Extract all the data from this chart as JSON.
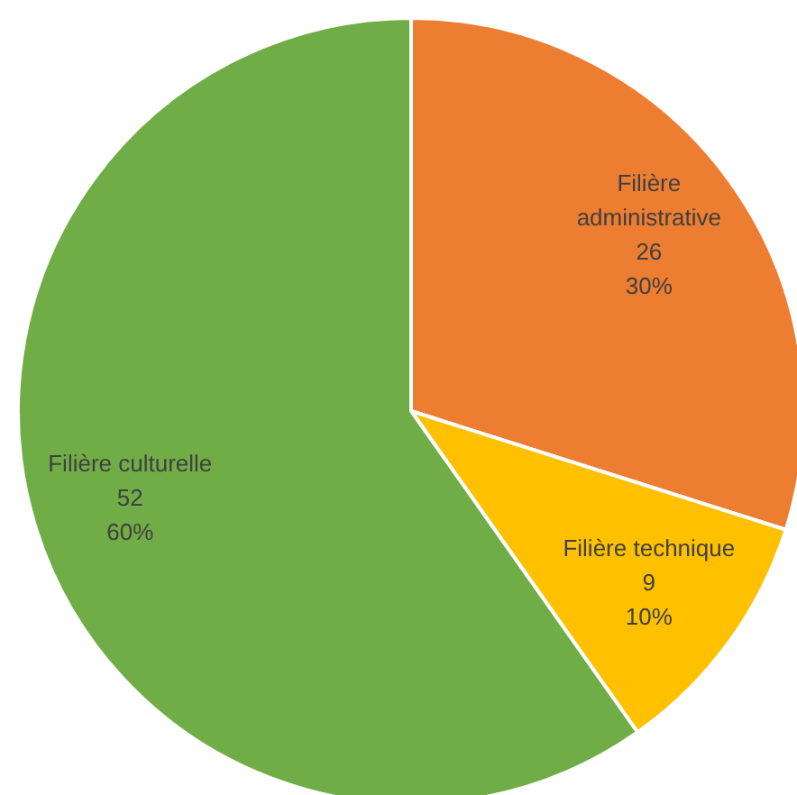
{
  "chart_data": {
    "type": "pie",
    "categories": [
      "Filière administrative",
      "Filière technique",
      "Filière culturelle"
    ],
    "values": [
      26,
      9,
      52
    ],
    "colors": [
      "#ed7d31",
      "#ffc000",
      "#70ad47"
    ],
    "value_labels": [
      "26\n30%",
      "9\n10%",
      "52\n60%"
    ]
  }
}
